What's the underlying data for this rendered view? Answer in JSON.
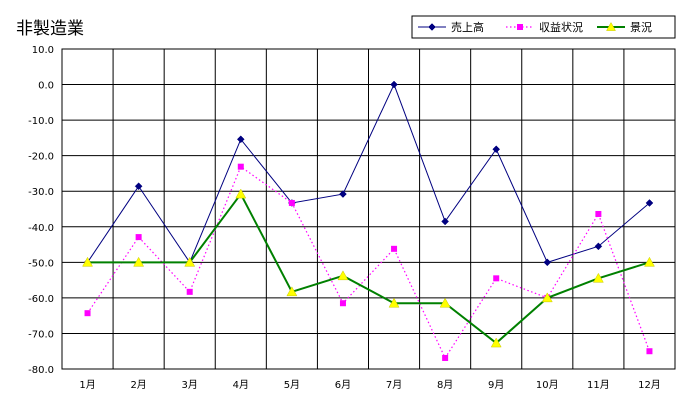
{
  "chart_data": {
    "type": "line",
    "title": "非製造業",
    "categories": [
      "1月",
      "2月",
      "3月",
      "4月",
      "5月",
      "6月",
      "7月",
      "8月",
      "9月",
      "10月",
      "11月",
      "12月"
    ],
    "ylim": [
      -80,
      10
    ],
    "yticks": [
      10,
      0,
      -10,
      -20,
      -30,
      -40,
      -50,
      -60,
      -70,
      -80
    ],
    "ytick_labels": [
      "10.0",
      "0.0",
      "-10.0",
      "-20.0",
      "-30.0",
      "-40.0",
      "-50.0",
      "-60.0",
      "-70.0",
      "-80.0"
    ],
    "grid": true,
    "legend_position": "top-right",
    "series": [
      {
        "name": "売上高",
        "color": "#000080",
        "marker": "diamond",
        "line_style": "solid",
        "values": [
          -50.0,
          -28.6,
          -50.0,
          -15.4,
          -33.3,
          -30.8,
          0.0,
          -38.5,
          -18.2,
          -50.0,
          -45.5,
          -33.3
        ]
      },
      {
        "name": "収益状況",
        "color": "#ff00ff",
        "marker": "square",
        "line_style": "dotted",
        "values": [
          -64.3,
          -42.9,
          -58.3,
          -23.1,
          -33.3,
          -61.5,
          -46.2,
          -76.9,
          -54.5,
          -60.0,
          -36.4,
          -75.0
        ]
      },
      {
        "name": "景況",
        "color": "#008000",
        "marker": "triangle",
        "marker_color": "#ffff00",
        "line_style": "solid",
        "values": [
          -50.0,
          -50.0,
          -50.0,
          -30.8,
          -58.3,
          -53.8,
          -61.5,
          -61.5,
          -72.7,
          -60.0,
          -54.5,
          -50.0
        ]
      }
    ]
  }
}
